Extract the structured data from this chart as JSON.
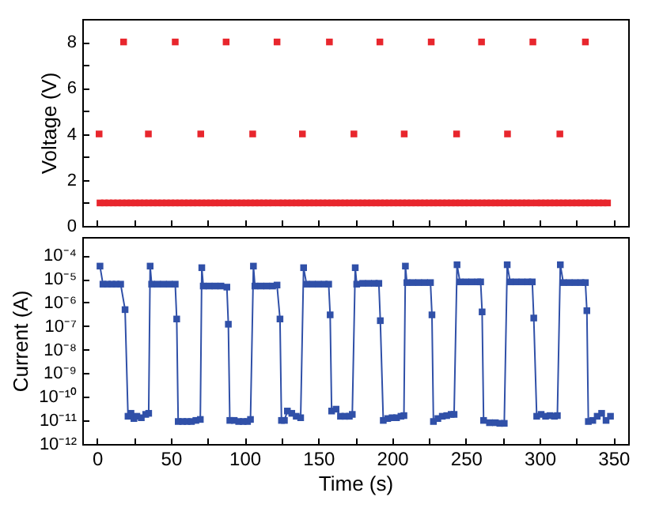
{
  "chart_data": [
    {
      "type": "scatter",
      "ylabel": "Voltage (V)",
      "xlim": [
        -10,
        360
      ],
      "xticks": [
        0,
        {
          "value": 25,
          "label": null
        },
        50,
        {
          "value": 75,
          "label": null
        },
        100,
        {
          "value": 125,
          "label": null
        },
        150,
        {
          "value": 175,
          "label": null
        },
        200,
        {
          "value": 225,
          "label": null
        },
        250,
        {
          "value": 275,
          "label": null
        },
        300,
        {
          "value": 325,
          "label": null
        },
        350
      ],
      "ylim": [
        0,
        9
      ],
      "yticks": [
        0,
        {
          "value": 1,
          "label": null
        },
        2,
        {
          "value": 3,
          "label": null
        },
        4,
        {
          "value": 5,
          "label": null
        },
        6,
        {
          "value": 7,
          "label": null
        },
        8
      ],
      "tick_labels": "y",
      "marker": "square",
      "series": [
        {
          "color": "#e8262d",
          "x": [
            18,
            53,
            87.5,
            122,
            157.5,
            191.7,
            226.5,
            260.6,
            295.4,
            331
          ],
          "values": [
            8,
            8,
            8,
            8,
            8,
            8,
            8,
            8,
            8,
            8
          ]
        },
        {
          "color": "#e8262d",
          "x": [
            1.4,
            34.8,
            70.3,
            105.5,
            139.2,
            174.1,
            208.2,
            243.7,
            278.2,
            313.7
          ],
          "values": [
            4,
            4,
            4,
            4,
            4,
            4,
            4,
            4,
            4,
            4
          ]
        },
        {
          "color": "#e8262d",
          "x": [
            2,
            5,
            8,
            11,
            14,
            17,
            20,
            23,
            26,
            29,
            32,
            35,
            38,
            41,
            44,
            47,
            50,
            53,
            56,
            59,
            62,
            65,
            68,
            71,
            74,
            77,
            80,
            83,
            86,
            89,
            92,
            95,
            98,
            101,
            104,
            107,
            110,
            113,
            116,
            119,
            123,
            126,
            129,
            132,
            135,
            138,
            141,
            144,
            147,
            150,
            153,
            156,
            159,
            162,
            165,
            168,
            171,
            174,
            177,
            180,
            183,
            186,
            189,
            192,
            195,
            198,
            201,
            204,
            207,
            210,
            213,
            216,
            219,
            222,
            225,
            228,
            231,
            234,
            237,
            240,
            243,
            246,
            249,
            252,
            255,
            258,
            261,
            264,
            267,
            270,
            273,
            276,
            279,
            282,
            285,
            288,
            291,
            294,
            298,
            301,
            304,
            307,
            310,
            313,
            316,
            319,
            322,
            325,
            328,
            331,
            334,
            337,
            340,
            343,
            346
          ],
          "values": [
            1,
            1,
            1,
            1,
            1,
            1,
            1,
            1,
            1,
            1,
            1,
            1,
            1,
            1,
            1,
            1,
            1,
            1,
            1,
            1,
            1,
            1,
            1,
            1,
            1,
            1,
            1,
            1,
            1,
            1,
            1,
            1,
            1,
            1,
            1,
            1,
            1,
            1,
            1,
            1,
            1,
            1,
            1,
            1,
            1,
            1,
            1,
            1,
            1,
            1,
            1,
            1,
            1,
            1,
            1,
            1,
            1,
            1,
            1,
            1,
            1,
            1,
            1,
            1,
            1,
            1,
            1,
            1,
            1,
            1,
            1,
            1,
            1,
            1,
            1,
            1,
            1,
            1,
            1,
            1,
            1,
            1,
            1,
            1,
            1,
            1,
            1,
            1,
            1,
            1,
            1,
            1,
            1,
            1,
            1,
            1,
            1,
            1,
            1,
            1,
            1,
            1,
            1,
            1,
            1,
            1,
            1,
            1,
            1,
            1,
            1,
            1,
            1,
            1,
            1
          ]
        }
      ]
    },
    {
      "type": "line",
      "xlabel": "Time (s)",
      "ylabel": "Current (A)",
      "log": "y",
      "marker": "square",
      "xlim": [
        -10,
        360
      ],
      "xticks": [
        0,
        {
          "value": 25,
          "label": null
        },
        50,
        {
          "value": 75,
          "label": null
        },
        100,
        {
          "value": 125,
          "label": null
        },
        150,
        {
          "value": 175,
          "label": null
        },
        200,
        {
          "value": 225,
          "label": null
        },
        250,
        {
          "value": 275,
          "label": null
        },
        300,
        {
          "value": 325,
          "label": null
        },
        350
      ],
      "ylim": [
        1e-12,
        0.0006
      ],
      "yticks": [
        {
          "value": 1e-12,
          "label": "10⁻¹²"
        },
        {
          "value": 1e-11,
          "label": "10⁻¹¹"
        },
        {
          "value": 1e-10,
          "label": "10⁻¹⁰"
        },
        {
          "value": 1e-09,
          "label": "10⁻⁹"
        },
        {
          "value": 1e-08,
          "label": "10⁻⁸"
        },
        {
          "value": 1e-07,
          "label": "10⁻⁷"
        },
        {
          "value": 1e-06,
          "label": "10⁻⁶"
        },
        {
          "value": 1e-05,
          "label": "10⁻⁵"
        },
        {
          "value": 0.0001,
          "label": "10⁻⁴"
        }
      ],
      "series": [
        {
          "color": "#3050a8",
          "x": [
            2,
            4,
            7,
            10,
            13,
            16,
            19,
            21,
            23,
            25,
            27,
            30,
            33,
            35,
            36,
            37,
            41,
            45,
            49,
            53,
            54,
            55,
            58,
            61,
            64,
            67,
            70,
            71,
            72,
            76,
            80,
            84,
            88,
            89,
            90,
            93,
            96,
            99,
            102,
            104,
            106,
            107,
            111,
            115,
            119,
            122,
            124,
            125,
            127,
            129,
            132,
            135,
            138,
            140,
            142,
            146,
            150,
            154,
            157,
            158,
            159,
            162,
            165,
            168,
            171,
            173,
            175,
            176,
            180,
            184,
            188,
            191,
            192,
            194,
            197,
            200,
            203,
            206,
            208,
            209,
            210,
            214,
            218,
            222,
            226,
            227,
            228,
            231,
            234,
            237,
            240,
            242,
            244,
            246,
            250,
            254,
            258,
            260,
            261,
            262,
            266,
            270,
            273,
            276,
            278,
            280,
            284,
            288,
            292,
            295,
            296,
            298,
            301,
            304,
            307,
            310,
            312,
            314,
            316,
            320,
            324,
            328,
            331,
            332,
            333,
            336,
            339,
            342,
            345,
            348
          ],
          "values": [
            3.5e-05,
            6e-06,
            6e-06,
            6e-06,
            6e-06,
            6e-06,
            5e-07,
            1.5e-11,
            2e-11,
            1.2e-11,
            1.5e-11,
            1.3e-11,
            1.8e-11,
            2e-11,
            3.5e-05,
            6e-06,
            6e-06,
            6e-06,
            6e-06,
            6e-06,
            2e-07,
            9e-12,
            9e-12,
            9e-12,
            9e-12,
            1e-11,
            1.1e-11,
            3e-05,
            5e-06,
            5e-06,
            5e-06,
            5e-06,
            4.5e-06,
            1.2e-07,
            1e-11,
            1e-11,
            9e-12,
            9e-12,
            9e-12,
            1.1e-11,
            3.5e-05,
            5e-06,
            5e-06,
            5e-06,
            5e-06,
            5.5e-06,
            2e-07,
            1e-11,
            1e-11,
            2.5e-11,
            2e-11,
            1.5e-11,
            1.3e-11,
            3e-05,
            6e-06,
            6e-06,
            6e-06,
            6e-06,
            6e-06,
            3e-07,
            2.5e-11,
            3e-11,
            1.5e-11,
            1.5e-11,
            1.5e-11,
            1.8e-11,
            3e-05,
            6e-06,
            6.5e-06,
            6.5e-06,
            6.5e-06,
            6.5e-06,
            1.7e-07,
            1e-11,
            1.2e-11,
            1.3e-11,
            1.3e-11,
            1.5e-11,
            1.6e-11,
            3.5e-05,
            7e-06,
            7e-06,
            7e-06,
            7e-06,
            7e-06,
            3e-07,
            9e-12,
            1.2e-11,
            1.5e-11,
            1.6e-11,
            1.8e-11,
            1.8e-11,
            4e-05,
            7.5e-06,
            7.5e-06,
            7.5e-06,
            7.5e-06,
            7.5e-06,
            4e-07,
            1e-11,
            8e-12,
            8e-12,
            7.5e-12,
            7.5e-12,
            4e-05,
            7.5e-06,
            7.5e-06,
            7.5e-06,
            7.5e-06,
            7.5e-06,
            2.2e-07,
            1.5e-11,
            1.8e-11,
            1.5e-11,
            1.6e-11,
            1.5e-11,
            1.6e-11,
            4e-05,
            7e-06,
            7e-06,
            7e-06,
            7e-06,
            7e-06,
            4.5e-07,
            9e-12,
            1e-11,
            1.5e-11,
            2e-11,
            1e-11,
            1.5e-11
          ]
        }
      ]
    }
  ]
}
